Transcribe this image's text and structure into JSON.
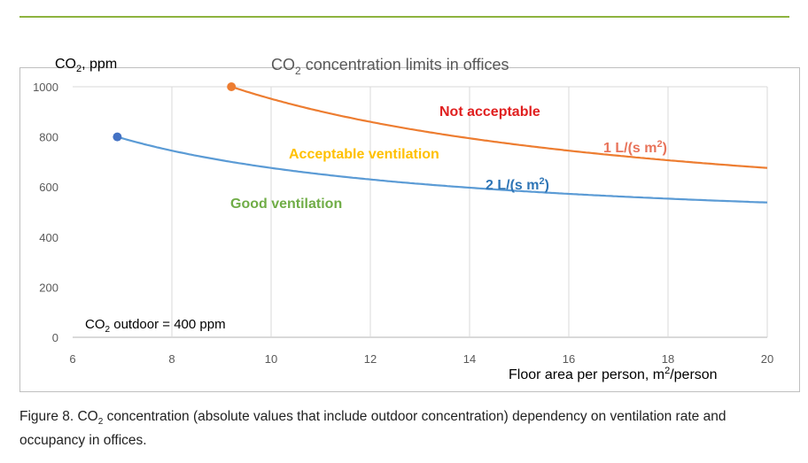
{
  "chart_data": {
    "type": "line",
    "title": {
      "pre": "CO",
      "sub": "2",
      "post": " concentration limits in offices"
    },
    "ylabel": {
      "pre": "CO",
      "sub": "2",
      "post": ", ppm"
    },
    "xlabel": {
      "pre": "Floor area per person, m",
      "sup": "2",
      "post": "/person"
    },
    "xlim": [
      6,
      20
    ],
    "ylim": [
      0,
      1000
    ],
    "x_ticks": [
      "6",
      "8",
      "10",
      "12",
      "14",
      "16",
      "18",
      "20"
    ],
    "y_ticks": [
      "0",
      "200",
      "400",
      "600",
      "800",
      "1000"
    ],
    "grid": "vertical",
    "outdoor_ppm": 400,
    "series": [
      {
        "name": "1 L/(s m2)",
        "label_pre": "1 L/(s m",
        "label_sup": "2",
        "label_post": ")",
        "color": "#ED7D31",
        "label_color": "#E8735A",
        "x": [
          9.2,
          10,
          12,
          14,
          16,
          18,
          20
        ],
        "values": [
          1000,
          952,
          860,
          794,
          745,
          707,
          676
        ]
      },
      {
        "name": "2 L/(s m2)",
        "label_pre": "2 L/(s m",
        "label_sup": "2",
        "label_post": ")",
        "color": "#5B9BD5",
        "label_color": "#2E75B6",
        "x": [
          6.9,
          8,
          10,
          12,
          14,
          16,
          18,
          20
        ],
        "values": [
          800,
          745,
          676,
          630,
          597,
          573,
          553,
          538
        ]
      }
    ],
    "annotations": [
      {
        "text": "Not acceptable",
        "color": "#E02020"
      },
      {
        "text": "Acceptable ventilation",
        "color": "#FFC000"
      },
      {
        "text": "Good ventilation",
        "color": "#70AD47"
      },
      {
        "pre": "CO",
        "sub": "2",
        "post": " outdoor = 400 ppm",
        "color": "#000000"
      }
    ]
  },
  "caption": {
    "pre": "Figure 8. CO",
    "sub": "2",
    "post": " concentration (absolute values that include outdoor concentration) dependency on ventilation rate and occupancy in offices."
  },
  "colors": {
    "rule": "#8DB33F",
    "grid": "#D9D9D9",
    "border": "#BFBFBF"
  }
}
